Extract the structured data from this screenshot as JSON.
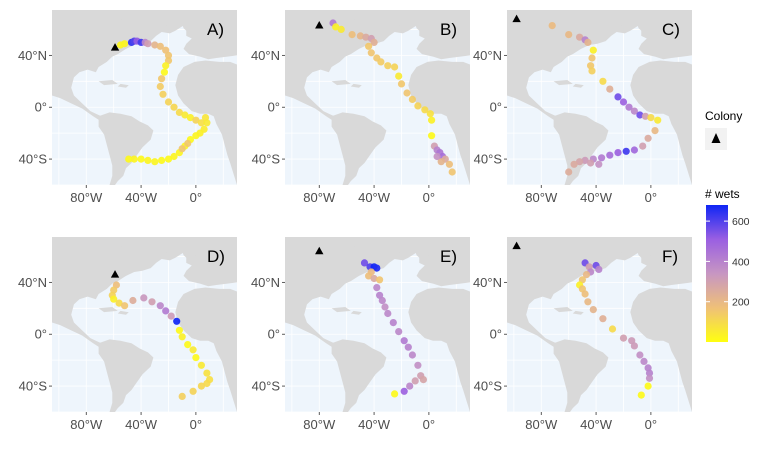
{
  "figure": {
    "x_ticks": [
      "80°W",
      "40°W",
      "0°"
    ],
    "y_ticks": [
      "40°N",
      "0°",
      "40°S"
    ],
    "lon_range": [
      -105,
      30
    ],
    "lat_range": [
      -60,
      75
    ],
    "panels": [
      {
        "label": "A)",
        "colony": {
          "lon": -59,
          "lat": 46
        },
        "points": [
          {
            "lon": -55,
            "lat": 48,
            "wets": 20
          },
          {
            "lon": -52,
            "lat": 49,
            "wets": 30
          },
          {
            "lon": -47,
            "lat": 50,
            "wets": 640
          },
          {
            "lon": -45,
            "lat": 51,
            "wets": 600
          },
          {
            "lon": -43,
            "lat": 51,
            "wets": 520
          },
          {
            "lon": -40,
            "lat": 50,
            "wets": 620
          },
          {
            "lon": -37,
            "lat": 50,
            "wets": 380
          },
          {
            "lon": -35,
            "lat": 49,
            "wets": 300
          },
          {
            "lon": -30,
            "lat": 48,
            "wets": 220
          },
          {
            "lon": -26,
            "lat": 47,
            "wets": 180
          },
          {
            "lon": -22,
            "lat": 44,
            "wets": 170
          },
          {
            "lon": -20,
            "lat": 40,
            "wets": 160
          },
          {
            "lon": -20,
            "lat": 36,
            "wets": 150
          },
          {
            "lon": -22,
            "lat": 32,
            "wets": 40
          },
          {
            "lon": -23,
            "lat": 27,
            "wets": 20
          },
          {
            "lon": -25,
            "lat": 22,
            "wets": 150
          },
          {
            "lon": -26,
            "lat": 16,
            "wets": 140
          },
          {
            "lon": -24,
            "lat": 10,
            "wets": 130
          },
          {
            "lon": -20,
            "lat": 4,
            "wets": 120
          },
          {
            "lon": -16,
            "lat": 0,
            "wets": 110
          },
          {
            "lon": -12,
            "lat": -4,
            "wets": 100
          },
          {
            "lon": -8,
            "lat": -6,
            "wets": 60
          },
          {
            "lon": -4,
            "lat": -8,
            "wets": 40
          },
          {
            "lon": 0,
            "lat": -10,
            "wets": 120
          },
          {
            "lon": 4,
            "lat": -12,
            "wets": 90
          },
          {
            "lon": 7,
            "lat": -8,
            "wets": 70
          },
          {
            "lon": 8,
            "lat": -12,
            "wets": 60
          },
          {
            "lon": 6,
            "lat": -17,
            "wets": 50
          },
          {
            "lon": 3,
            "lat": -20,
            "wets": 40
          },
          {
            "lon": 0,
            "lat": -22,
            "wets": 30
          },
          {
            "lon": -4,
            "lat": -25,
            "wets": 20
          },
          {
            "lon": -8,
            "lat": -30,
            "wets": 20
          },
          {
            "lon": -12,
            "lat": -35,
            "wets": 30
          },
          {
            "lon": -16,
            "lat": -38,
            "wets": 30
          },
          {
            "lon": -20,
            "lat": -40,
            "wets": 20
          },
          {
            "lon": -25,
            "lat": -41,
            "wets": 20
          },
          {
            "lon": -30,
            "lat": -42,
            "wets": 30
          },
          {
            "lon": -35,
            "lat": -41,
            "wets": 30
          },
          {
            "lon": -40,
            "lat": -40,
            "wets": 20
          },
          {
            "lon": -45,
            "lat": -40,
            "wets": 30
          },
          {
            "lon": -49,
            "lat": -40,
            "wets": 20
          },
          {
            "lon": -6,
            "lat": -28,
            "wets": 150
          },
          {
            "lon": -10,
            "lat": -32,
            "wets": 160
          }
        ]
      },
      {
        "label": "B)",
        "colony": {
          "lon": -80,
          "lat": 63
        },
        "points": [
          {
            "lon": -70,
            "lat": 65,
            "wets": 420
          },
          {
            "lon": -68,
            "lat": 62,
            "wets": 40
          },
          {
            "lon": -64,
            "lat": 60,
            "wets": 60
          },
          {
            "lon": -56,
            "lat": 56,
            "wets": 180
          },
          {
            "lon": -50,
            "lat": 55,
            "wets": 210
          },
          {
            "lon": -46,
            "lat": 54,
            "wets": 260
          },
          {
            "lon": -42,
            "lat": 53,
            "wets": 300
          },
          {
            "lon": -40,
            "lat": 50,
            "wets": 240
          },
          {
            "lon": -44,
            "lat": 47,
            "wets": 150
          },
          {
            "lon": -42,
            "lat": 42,
            "wets": 160
          },
          {
            "lon": -38,
            "lat": 38,
            "wets": 150
          },
          {
            "lon": -35,
            "lat": 35,
            "wets": 140
          },
          {
            "lon": -30,
            "lat": 32,
            "wets": 130
          },
          {
            "lon": -25,
            "lat": 31,
            "wets": 120
          },
          {
            "lon": -22,
            "lat": 24,
            "wets": 60
          },
          {
            "lon": -20,
            "lat": 18,
            "wets": 150
          },
          {
            "lon": -16,
            "lat": 11,
            "wets": 160
          },
          {
            "lon": -12,
            "lat": 6,
            "wets": 140
          },
          {
            "lon": -8,
            "lat": 1,
            "wets": 120
          },
          {
            "lon": -3,
            "lat": -2,
            "wets": 100
          },
          {
            "lon": 1,
            "lat": -5,
            "wets": 80
          },
          {
            "lon": 2,
            "lat": -10,
            "wets": 40
          },
          {
            "lon": 2,
            "lat": -22,
            "wets": 20
          },
          {
            "lon": 4,
            "lat": -30,
            "wets": 300
          },
          {
            "lon": 6,
            "lat": -33,
            "wets": 400
          },
          {
            "lon": 8,
            "lat": -35,
            "wets": 440
          },
          {
            "lon": 10,
            "lat": -38,
            "wets": 460
          },
          {
            "lon": 12,
            "lat": -40,
            "wets": 260
          },
          {
            "lon": 15,
            "lat": -44,
            "wets": 180
          },
          {
            "lon": 17,
            "lat": -50,
            "wets": 160
          },
          {
            "lon": 9,
            "lat": -42,
            "wets": 220
          },
          {
            "lon": 6,
            "lat": -38,
            "wets": 350
          }
        ]
      },
      {
        "label": "C)",
        "colony": {
          "lon": -98,
          "lat": 68
        },
        "points": [
          {
            "lon": -72,
            "lat": 63,
            "wets": 190
          },
          {
            "lon": -60,
            "lat": 56,
            "wets": 200
          },
          {
            "lon": -52,
            "lat": 54,
            "wets": 260
          },
          {
            "lon": -48,
            "lat": 52,
            "wets": 400
          },
          {
            "lon": -46,
            "lat": 50,
            "wets": 220
          },
          {
            "lon": -42,
            "lat": 44,
            "wets": 40
          },
          {
            "lon": -43,
            "lat": 38,
            "wets": 160
          },
          {
            "lon": -44,
            "lat": 32,
            "wets": 150
          },
          {
            "lon": -43,
            "lat": 28,
            "wets": 130
          },
          {
            "lon": -35,
            "lat": 20,
            "wets": 100
          },
          {
            "lon": -30,
            "lat": 14,
            "wets": 240
          },
          {
            "lon": -24,
            "lat": 8,
            "wets": 560
          },
          {
            "lon": -20,
            "lat": 4,
            "wets": 500
          },
          {
            "lon": -16,
            "lat": 0,
            "wets": 420
          },
          {
            "lon": -12,
            "lat": -3,
            "wets": 380
          },
          {
            "lon": -8,
            "lat": -6,
            "wets": 560
          },
          {
            "lon": -4,
            "lat": -7,
            "wets": 300
          },
          {
            "lon": 0,
            "lat": -8,
            "wets": 100
          },
          {
            "lon": 5,
            "lat": -10,
            "wets": 60
          },
          {
            "lon": 3,
            "lat": -18,
            "wets": 200
          },
          {
            "lon": -2,
            "lat": -24,
            "wets": 260
          },
          {
            "lon": -6,
            "lat": -30,
            "wets": 300
          },
          {
            "lon": -12,
            "lat": -33,
            "wets": 480
          },
          {
            "lon": -18,
            "lat": -34,
            "wets": 620
          },
          {
            "lon": -24,
            "lat": -35,
            "wets": 500
          },
          {
            "lon": -30,
            "lat": -37,
            "wets": 460
          },
          {
            "lon": -36,
            "lat": -39,
            "wets": 420
          },
          {
            "lon": -42,
            "lat": -40,
            "wets": 380
          },
          {
            "lon": -48,
            "lat": -41,
            "wets": 320
          },
          {
            "lon": -52,
            "lat": -42,
            "wets": 280
          },
          {
            "lon": -56,
            "lat": -44,
            "wets": 260
          },
          {
            "lon": -60,
            "lat": -50,
            "wets": 250
          },
          {
            "lon": -44,
            "lat": -43,
            "wets": 300
          },
          {
            "lon": -38,
            "lat": -44,
            "wets": 350
          }
        ]
      },
      {
        "label": "D)",
        "colony": {
          "lon": -59,
          "lat": 46
        },
        "points": [
          {
            "lon": -58,
            "lat": 38,
            "wets": 180
          },
          {
            "lon": -60,
            "lat": 34,
            "wets": 140
          },
          {
            "lon": -61,
            "lat": 30,
            "wets": 120
          },
          {
            "lon": -60,
            "lat": 27,
            "wets": 40
          },
          {
            "lon": -56,
            "lat": 24,
            "wets": 100
          },
          {
            "lon": -52,
            "lat": 22,
            "wets": 160
          },
          {
            "lon": -46,
            "lat": 26,
            "wets": 250
          },
          {
            "lon": -38,
            "lat": 28,
            "wets": 330
          },
          {
            "lon": -32,
            "lat": 25,
            "wets": 300
          },
          {
            "lon": -26,
            "lat": 22,
            "wets": 380
          },
          {
            "lon": -22,
            "lat": 18,
            "wets": 420
          },
          {
            "lon": -18,
            "lat": 14,
            "wets": 320
          },
          {
            "lon": -14,
            "lat": 10,
            "wets": 680
          },
          {
            "lon": -12,
            "lat": 3,
            "wets": 20
          },
          {
            "lon": -10,
            "lat": -2,
            "wets": 40
          },
          {
            "lon": -6,
            "lat": -8,
            "wets": 20
          },
          {
            "lon": -2,
            "lat": -12,
            "wets": 60
          },
          {
            "lon": 0,
            "lat": -18,
            "wets": 20
          },
          {
            "lon": 4,
            "lat": -24,
            "wets": 60
          },
          {
            "lon": 8,
            "lat": -30,
            "wets": 80
          },
          {
            "lon": 10,
            "lat": -35,
            "wets": 90
          },
          {
            "lon": 8,
            "lat": -38,
            "wets": 100
          },
          {
            "lon": 4,
            "lat": -40,
            "wets": 110
          },
          {
            "lon": -2,
            "lat": -44,
            "wets": 120
          },
          {
            "lon": -10,
            "lat": -48,
            "wets": 130
          }
        ]
      },
      {
        "label": "E)",
        "colony": {
          "lon": -80,
          "lat": 64
        },
        "points": [
          {
            "lon": -47,
            "lat": 55,
            "wets": 560
          },
          {
            "lon": -43,
            "lat": 52,
            "wets": 600
          },
          {
            "lon": -40,
            "lat": 52,
            "wets": 680
          },
          {
            "lon": -38,
            "lat": 51,
            "wets": 660
          },
          {
            "lon": -42,
            "lat": 48,
            "wets": 200
          },
          {
            "lon": -44,
            "lat": 45,
            "wets": 180
          },
          {
            "lon": -40,
            "lat": 43,
            "wets": 260
          },
          {
            "lon": -36,
            "lat": 42,
            "wets": 160
          },
          {
            "lon": -38,
            "lat": 36,
            "wets": 380
          },
          {
            "lon": -36,
            "lat": 30,
            "wets": 400
          },
          {
            "lon": -34,
            "lat": 26,
            "wets": 380
          },
          {
            "lon": -32,
            "lat": 21,
            "wets": 360
          },
          {
            "lon": -30,
            "lat": 16,
            "wets": 380
          },
          {
            "lon": -26,
            "lat": 9,
            "wets": 400
          },
          {
            "lon": -22,
            "lat": 2,
            "wets": 380
          },
          {
            "lon": -18,
            "lat": -5,
            "wets": 420
          },
          {
            "lon": -15,
            "lat": -10,
            "wets": 400
          },
          {
            "lon": -12,
            "lat": -16,
            "wets": 380
          },
          {
            "lon": -8,
            "lat": -24,
            "wets": 360
          },
          {
            "lon": -6,
            "lat": -32,
            "wets": 300
          },
          {
            "lon": -4,
            "lat": -35,
            "wets": 280
          },
          {
            "lon": -10,
            "lat": -36,
            "wets": 300
          },
          {
            "lon": -14,
            "lat": -40,
            "wets": 380
          },
          {
            "lon": -18,
            "lat": -44,
            "wets": 500
          },
          {
            "lon": -25,
            "lat": -46,
            "wets": 20
          }
        ]
      },
      {
        "label": "F)",
        "colony": {
          "lon": -98,
          "lat": 68
        },
        "points": [
          {
            "lon": -48,
            "lat": 55,
            "wets": 560
          },
          {
            "lon": -45,
            "lat": 52,
            "wets": 300
          },
          {
            "lon": -40,
            "lat": 53,
            "wets": 560
          },
          {
            "lon": -38,
            "lat": 50,
            "wets": 400
          },
          {
            "lon": -44,
            "lat": 48,
            "wets": 380
          },
          {
            "lon": -47,
            "lat": 46,
            "wets": 200
          },
          {
            "lon": -50,
            "lat": 42,
            "wets": 160
          },
          {
            "lon": -52,
            "lat": 38,
            "wets": 40
          },
          {
            "lon": -50,
            "lat": 35,
            "wets": 160
          },
          {
            "lon": -48,
            "lat": 31,
            "wets": 180
          },
          {
            "lon": -46,
            "lat": 25,
            "wets": 200
          },
          {
            "lon": -42,
            "lat": 19,
            "wets": 220
          },
          {
            "lon": -35,
            "lat": 12,
            "wets": 240
          },
          {
            "lon": -28,
            "lat": 4,
            "wets": 100
          },
          {
            "lon": -20,
            "lat": -3,
            "wets": 300
          },
          {
            "lon": -14,
            "lat": -5,
            "wets": 320
          },
          {
            "lon": -12,
            "lat": -9,
            "wets": 320
          },
          {
            "lon": -8,
            "lat": -16,
            "wets": 360
          },
          {
            "lon": -5,
            "lat": -21,
            "wets": 380
          },
          {
            "lon": -2,
            "lat": -26,
            "wets": 400
          },
          {
            "lon": -1,
            "lat": -30,
            "wets": 400
          },
          {
            "lon": -1,
            "lat": -34,
            "wets": 360
          },
          {
            "lon": -2,
            "lat": -40,
            "wets": 20
          },
          {
            "lon": -7,
            "lat": -47,
            "wets": 20
          }
        ]
      }
    ]
  },
  "legend": {
    "colony_title": "Colony",
    "wets_title": "# wets",
    "wets_range": [
      0,
      680
    ],
    "wets_ticks": [
      {
        "value": 200,
        "label": "200"
      },
      {
        "value": 400,
        "label": "400"
      },
      {
        "value": 600,
        "label": "600"
      }
    ],
    "colors": {
      "low": "#ffff10",
      "mid_low": "#efc078",
      "mid": "#c796c2",
      "mid_high": "#9a5fe2",
      "high": "#0f26f5",
      "colony_marker": "#000000",
      "land": "#d9d9d9",
      "ocean": "#eef5fc"
    }
  }
}
